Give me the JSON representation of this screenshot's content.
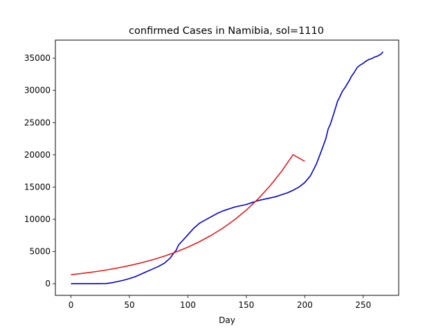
{
  "chart_data": {
    "type": "line",
    "title": "confirmed Cases in Namibia, sol=1110",
    "xlabel": "Day",
    "ylabel": "",
    "xlim": [
      -13.35,
      280.35
    ],
    "ylim": [
      -1800,
      37800
    ],
    "xticks": [
      0,
      50,
      100,
      150,
      200,
      250
    ],
    "yticks": [
      0,
      5000,
      10000,
      15000,
      20000,
      25000,
      30000,
      35000
    ],
    "grid": false,
    "series": [
      {
        "color": "#0000cc",
        "x": [
          0,
          10,
          20,
          30,
          35,
          40,
          45,
          50,
          55,
          60,
          65,
          70,
          75,
          80,
          85,
          88,
          90,
          92,
          95,
          100,
          105,
          110,
          115,
          120,
          125,
          130,
          135,
          140,
          145,
          150,
          155,
          160,
          165,
          170,
          175,
          180,
          185,
          190,
          195,
          200,
          205,
          210,
          215,
          218,
          220,
          222,
          225,
          228,
          230,
          232,
          235,
          238,
          240,
          242,
          245,
          248,
          250,
          252,
          255,
          258,
          260,
          262,
          265,
          267
        ],
        "y": [
          0,
          0,
          0,
          30,
          150,
          350,
          550,
          800,
          1100,
          1500,
          1900,
          2300,
          2700,
          3200,
          4000,
          4800,
          5200,
          6000,
          6600,
          7600,
          8600,
          9400,
          9900,
          10400,
          10900,
          11300,
          11600,
          11900,
          12100,
          12300,
          12600,
          12900,
          13100,
          13300,
          13500,
          13800,
          14100,
          14500,
          15000,
          15700,
          16800,
          18600,
          21000,
          22500,
          24000,
          24800,
          26500,
          28300,
          29000,
          29800,
          30600,
          31500,
          32200,
          32700,
          33600,
          34000,
          34200,
          34500,
          34800,
          35000,
          35200,
          35300,
          35600,
          36000
        ]
      },
      {
        "color": "#e41a1c",
        "x": [
          0,
          10,
          20,
          30,
          40,
          50,
          60,
          70,
          80,
          90,
          100,
          110,
          120,
          130,
          140,
          150,
          160,
          170,
          180,
          190,
          200
        ],
        "y": [
          1400,
          1610,
          1850,
          2130,
          2450,
          2820,
          3240,
          3730,
          4290,
          4930,
          5670,
          6530,
          7510,
          8640,
          9940,
          11430,
          13150,
          15130,
          17400,
          20020,
          19000
        ]
      }
    ]
  }
}
